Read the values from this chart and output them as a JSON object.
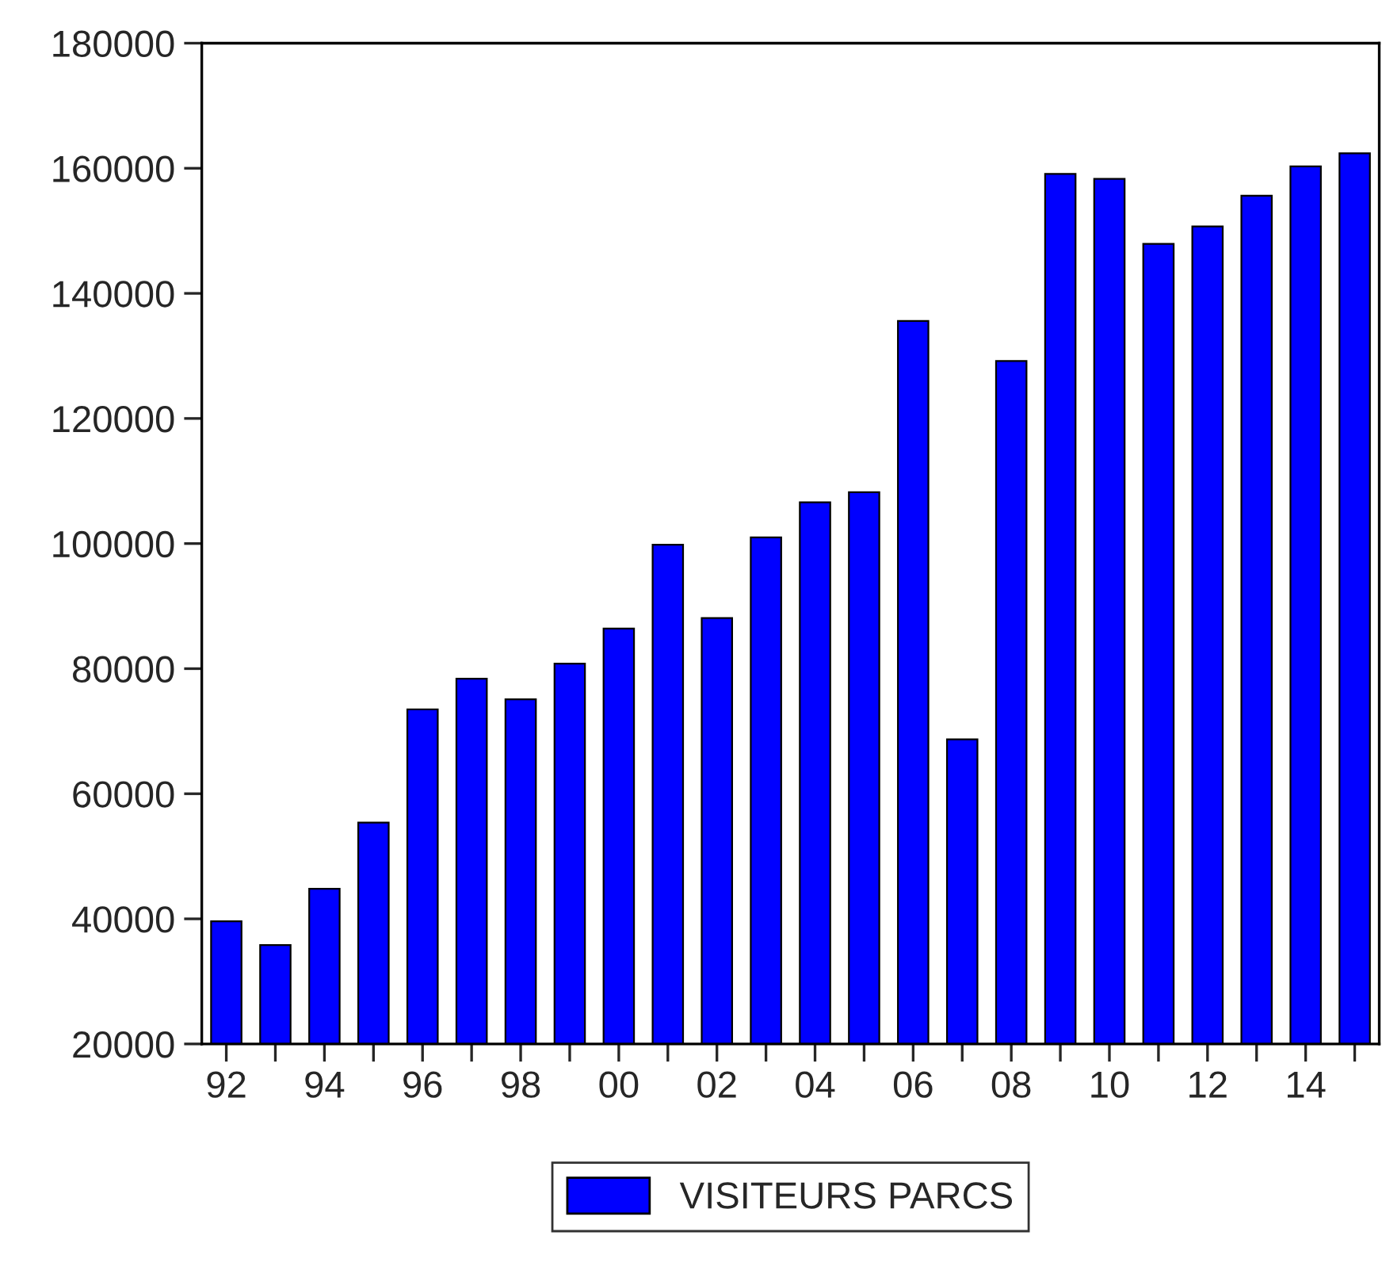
{
  "chart_data": {
    "type": "bar",
    "categories": [
      "92",
      null,
      "94",
      null,
      "96",
      null,
      "98",
      null,
      "00",
      null,
      "02",
      null,
      "04",
      null,
      "06",
      null,
      "08",
      null,
      "10",
      null,
      "12",
      null,
      "14",
      null
    ],
    "series": [
      {
        "name": "VISITEURS PARCS",
        "color": "#0000ff",
        "values": [
          39600,
          35800,
          44800,
          55400,
          73500,
          78400,
          75100,
          80800,
          86400,
          99800,
          88100,
          101000,
          106600,
          108200,
          135600,
          68700,
          129200,
          159100,
          158300,
          147900,
          150700,
          155600,
          160300,
          162400
        ]
      }
    ],
    "ylim": [
      20000,
      180000
    ],
    "yticks": [
      20000,
      40000,
      60000,
      80000,
      100000,
      120000,
      140000,
      160000,
      180000
    ],
    "grid": false,
    "legend": "bottom"
  }
}
